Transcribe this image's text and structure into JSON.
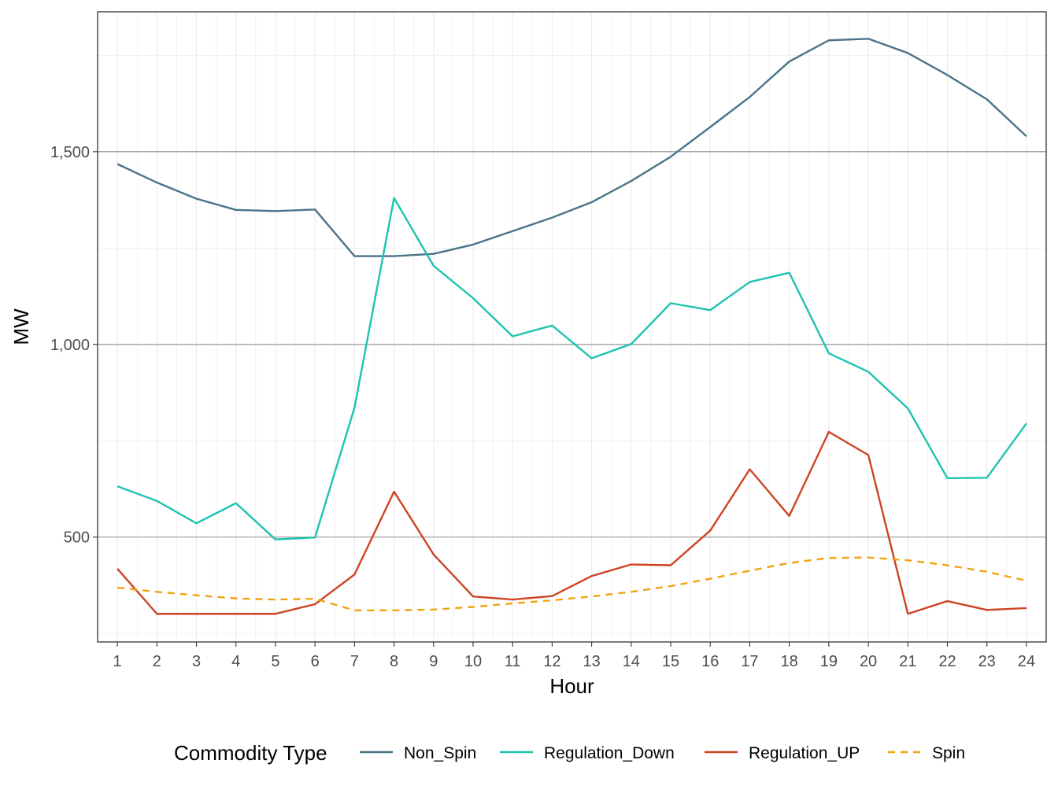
{
  "chart_data": {
    "type": "line",
    "title": "",
    "xlabel": "Hour",
    "ylabel": "MW",
    "x": [
      1,
      2,
      3,
      4,
      5,
      6,
      7,
      8,
      9,
      10,
      11,
      12,
      13,
      14,
      15,
      16,
      17,
      18,
      19,
      20,
      21,
      22,
      23,
      24
    ],
    "x_tick_labels": [
      "1",
      "2",
      "3",
      "4",
      "5",
      "6",
      "7",
      "8",
      "9",
      "10",
      "11",
      "12",
      "13",
      "14",
      "15",
      "16",
      "17",
      "18",
      "19",
      "20",
      "21",
      "22",
      "23",
      "24"
    ],
    "xlim": [
      0.5,
      24.5
    ],
    "ylim": [
      228,
      1863
    ],
    "y_ticks": [
      500,
      1000,
      1500
    ],
    "y_tick_labels": [
      "500",
      "1,000",
      "1,500"
    ],
    "grid": true,
    "legend": {
      "title": "Commodity Type",
      "position": "bottom"
    },
    "series": [
      {
        "name": "Non_Spin",
        "color": "#4a7487",
        "dash": "solid",
        "values": [
          1468,
          1420,
          1378,
          1349,
          1346,
          1350,
          1229,
          1229,
          1235,
          1259,
          1294,
          1329,
          1369,
          1424,
          1487,
          1564,
          1642,
          1734,
          1789,
          1793,
          1756,
          1699,
          1636,
          1540
        ]
      },
      {
        "name": "Regulation_Down",
        "color": "#1ec3b0",
        "dash": "solid",
        "values": [
          632,
          594,
          536,
          588,
          494,
          499,
          836,
          1380,
          1204,
          1120,
          1021,
          1049,
          964,
          1001,
          1107,
          1089,
          1162,
          1186,
          977,
          929,
          834,
          653,
          654,
          795
        ]
      },
      {
        "name": "Regulation_UP",
        "color": "#cc4423",
        "dash": "solid",
        "values": [
          418,
          301,
          301,
          301,
          301,
          326,
          403,
          618,
          455,
          346,
          338,
          347,
          399,
          429,
          427,
          517,
          676,
          555,
          773,
          713,
          301,
          334,
          311,
          316
        ]
      },
      {
        "name": "Spin",
        "color": "#f2a30f",
        "dash": "dashed",
        "values": [
          369,
          358,
          349,
          341,
          338,
          340,
          310,
          310,
          312,
          319,
          328,
          336,
          346,
          358,
          373,
          392,
          413,
          433,
          446,
          447,
          440,
          427,
          410,
          387
        ]
      }
    ]
  }
}
